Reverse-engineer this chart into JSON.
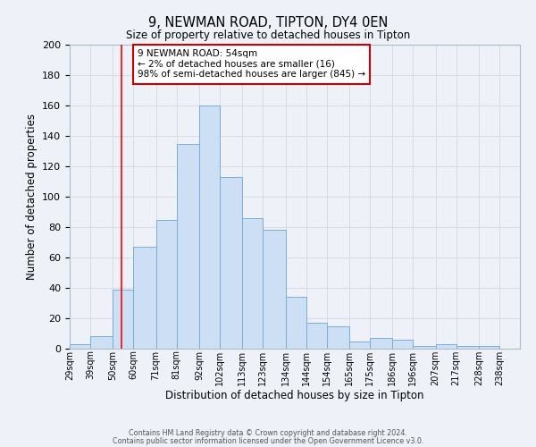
{
  "title": "9, NEWMAN ROAD, TIPTON, DY4 0EN",
  "subtitle": "Size of property relative to detached houses in Tipton",
  "xlabel": "Distribution of detached houses by size in Tipton",
  "ylabel": "Number of detached properties",
  "bin_labels": [
    "29sqm",
    "39sqm",
    "50sqm",
    "60sqm",
    "71sqm",
    "81sqm",
    "92sqm",
    "102sqm",
    "113sqm",
    "123sqm",
    "134sqm",
    "144sqm",
    "154sqm",
    "165sqm",
    "175sqm",
    "186sqm",
    "196sqm",
    "207sqm",
    "217sqm",
    "228sqm",
    "238sqm"
  ],
  "bar_heights": [
    3,
    8,
    39,
    67,
    85,
    135,
    160,
    113,
    86,
    78,
    34,
    17,
    15,
    5,
    7,
    6,
    2,
    3,
    2,
    2,
    0
  ],
  "bar_color": "#ccdff5",
  "bar_edge_color": "#7aadd4",
  "grid_color": "#d4dce8",
  "background_color": "#eef2f8",
  "red_line_x": 54,
  "annotation_text": "9 NEWMAN ROAD: 54sqm\n← 2% of detached houses are smaller (16)\n98% of semi-detached houses are larger (845) →",
  "annotation_box_edge": "#cc0000",
  "ylim": [
    0,
    200
  ],
  "yticks": [
    0,
    20,
    40,
    60,
    80,
    100,
    120,
    140,
    160,
    180,
    200
  ],
  "bin_edges": [
    29,
    39,
    50,
    60,
    71,
    81,
    92,
    102,
    113,
    123,
    134,
    144,
    154,
    165,
    175,
    186,
    196,
    207,
    217,
    228,
    238,
    248
  ],
  "footer_line1": "Contains HM Land Registry data © Crown copyright and database right 2024.",
  "footer_line2": "Contains public sector information licensed under the Open Government Licence v3.0."
}
